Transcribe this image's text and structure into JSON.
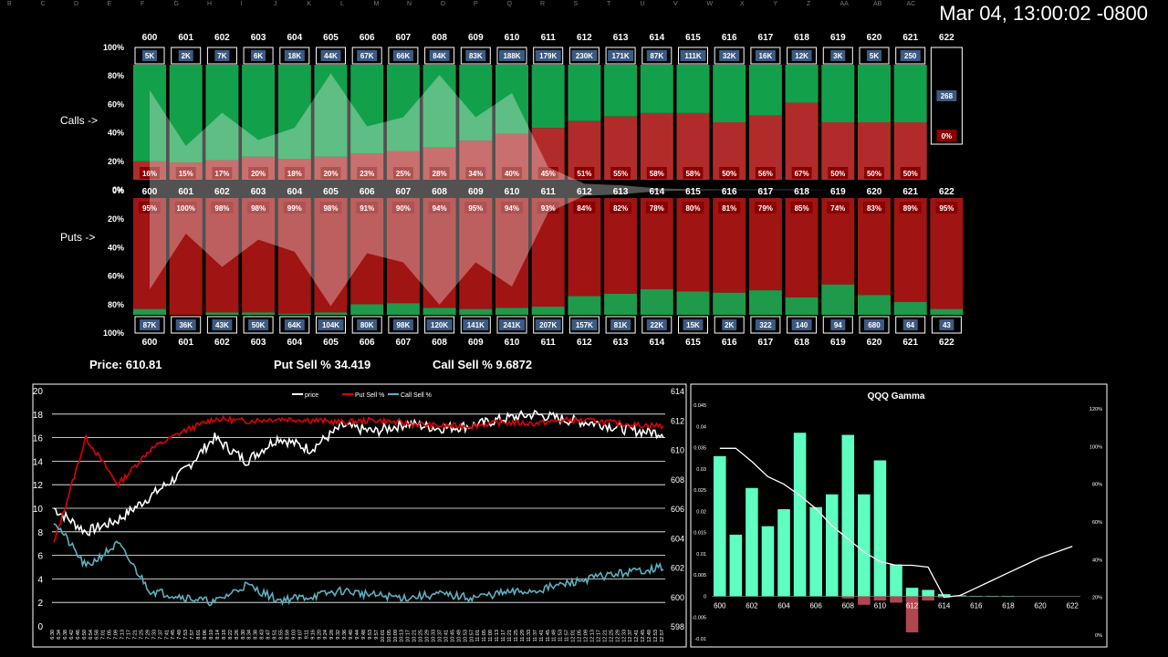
{
  "timestamp": "Mar 04, 13:00:02 -0800",
  "sheet_columns": [
    "B",
    "C",
    "D",
    "E",
    "F",
    "G",
    "H",
    "I",
    "J",
    "K",
    "L",
    "M",
    "N",
    "O",
    "P",
    "Q",
    "R",
    "S",
    "T",
    "U",
    "V",
    "W",
    "X",
    "Y",
    "Z",
    "AA",
    "AB",
    "AC"
  ],
  "labels": {
    "calls": "Calls ->",
    "puts": "Puts ->"
  },
  "stats": {
    "price": "Price: 610.81",
    "put_sell": "Put Sell % 34.419",
    "call_sell": "Call Sell % 9.6872"
  },
  "axis_pct_top": [
    "100%",
    "80%",
    "60%",
    "40%",
    "20%",
    "0%"
  ],
  "axis_pct_bottom": [
    "0%",
    "20%",
    "40%",
    "60%",
    "80%",
    "100%"
  ],
  "strikes": [
    "600",
    "601",
    "602",
    "603",
    "604",
    "605",
    "606",
    "607",
    "608",
    "609",
    "610",
    "611",
    "612",
    "613",
    "614",
    "615",
    "616",
    "617",
    "618",
    "619",
    "620",
    "621",
    "622"
  ],
  "call_volumes": [
    "5K",
    "2K",
    "7K",
    "6K",
    "18K",
    "44K",
    "67K",
    "66K",
    "84K",
    "83K",
    "188K",
    "179K",
    "230K",
    "171K",
    "87K",
    "111K",
    "32K",
    "16K",
    "12K",
    "3K",
    "5K",
    "250",
    "268"
  ],
  "call_sell_pct": [
    "16%",
    "15%",
    "17%",
    "20%",
    "18%",
    "20%",
    "23%",
    "25%",
    "28%",
    "34%",
    "40%",
    "45%",
    "51%",
    "55%",
    "58%",
    "58%",
    "50%",
    "56%",
    "67%",
    "50%",
    "50%",
    "50%",
    "0%"
  ],
  "call_sell_values": [
    16,
    15,
    17,
    20,
    18,
    20,
    23,
    25,
    28,
    34,
    40,
    45,
    51,
    55,
    58,
    58,
    50,
    56,
    67,
    50,
    50,
    50,
    0
  ],
  "put_volumes": [
    "87K",
    "36K",
    "43K",
    "50K",
    "64K",
    "104K",
    "80K",
    "98K",
    "120K",
    "141K",
    "241K",
    "207K",
    "157K",
    "81K",
    "22K",
    "15K",
    "2K",
    "322",
    "140",
    "94",
    "680",
    "64",
    "43"
  ],
  "put_sell_pct": [
    "95%",
    "100%",
    "98%",
    "98%",
    "99%",
    "98%",
    "91%",
    "90%",
    "94%",
    "95%",
    "94%",
    "93%",
    "84%",
    "82%",
    "78%",
    "80%",
    "81%",
    "79%",
    "85%",
    "74%",
    "83%",
    "89%",
    "95%"
  ],
  "put_sell_values": [
    95,
    100,
    98,
    98,
    99,
    98,
    91,
    90,
    94,
    95,
    94,
    93,
    84,
    82,
    78,
    80,
    81,
    79,
    85,
    74,
    83,
    89,
    95
  ],
  "colors": {
    "call_green": "#13a04a",
    "call_red": "#b22b2b",
    "put_red": "#a01414",
    "put_green": "#1e9a4a",
    "vol_box": "#3d5a80",
    "overlay": "#ffffff",
    "flow_price": "#ffffff",
    "flow_put": "#e00000",
    "flow_call": "#5fb0c0",
    "gamma_pos": "#5effc0",
    "gamma_neg": "#b0474f"
  },
  "flow_chart": {
    "legend": [
      "price",
      "Put Sell %",
      "Call Sell %"
    ],
    "left_ticks": [
      "20",
      "18",
      "16",
      "14",
      "12",
      "10",
      "8",
      "6",
      "4",
      "2",
      "0"
    ],
    "right_ticks": [
      "614",
      "612",
      "610",
      "608",
      "606",
      "604",
      "602",
      "600",
      "598"
    ],
    "x_ticks": [
      "6:30",
      "6:34",
      "6:38",
      "6:42",
      "6:46",
      "6:50",
      "6:54",
      "6:58",
      "7:01",
      "7:05",
      "7:09",
      "7:13",
      "7:17",
      "7:21",
      "7:25",
      "7:29",
      "7:33",
      "7:37",
      "7:41",
      "7:45",
      "7:49",
      "7:53",
      "7:57",
      "8:01",
      "8:06",
      "8:10",
      "8:14",
      "8:18",
      "8:22",
      "8:26",
      "8:30",
      "8:34",
      "8:38",
      "8:43",
      "8:47",
      "8:51",
      "8:55",
      "8:59",
      "9:03",
      "9:07",
      "9:11",
      "9:16",
      "9:20",
      "9:24",
      "9:28",
      "9:32",
      "9:36",
      "9:40",
      "9:44",
      "9:48",
      "9:53",
      "9:57",
      "10:01",
      "10:05",
      "10:09",
      "10:13",
      "10:17",
      "10:21",
      "10:25",
      "10:29",
      "10:33",
      "10:37",
      "10:41",
      "10:45",
      "10:49",
      "10:53",
      "10:57",
      "11:01",
      "11:05",
      "11:09",
      "11:13",
      "11:17",
      "11:21",
      "11:25",
      "11:29",
      "11:33",
      "11:37",
      "11:41",
      "11:45",
      "11:49",
      "11:53",
      "11:57",
      "12:01",
      "12:05",
      "12:09",
      "12:13",
      "12:17",
      "12:21",
      "12:25",
      "12:29",
      "12:33",
      "12:37",
      "12:41",
      "12:45",
      "12:49",
      "12:53",
      "12:57"
    ]
  },
  "chart_data": {
    "type": "bar",
    "title": "QQQ Gamma",
    "categories": [
      "600",
      "601",
      "602",
      "603",
      "604",
      "605",
      "606",
      "607",
      "608",
      "609",
      "610",
      "611",
      "612",
      "613",
      "614",
      "615",
      "616",
      "617",
      "618",
      "619",
      "620",
      "621",
      "622"
    ],
    "x_tick_labels": [
      "600",
      "602",
      "604",
      "606",
      "608",
      "610",
      "612",
      "614",
      "616",
      "618",
      "620",
      "622"
    ],
    "series": [
      {
        "values": [
          0.033,
          0.0145,
          0.0255,
          0.0165,
          0.0205,
          0.0385,
          0.021,
          0.024,
          0.038,
          0.024,
          0.032,
          0.0075,
          0.002,
          0.0015,
          0.0005,
          0.0002,
          0.0001,
          0.0001,
          0.0001,
          0,
          0,
          0,
          0
        ]
      }
    ],
    "neg_values": [
      0,
      0,
      0,
      0,
      0,
      0,
      0,
      0,
      -0.0005,
      -0.002,
      -0.001,
      -0.0015,
      -0.0085,
      -0.001,
      -0.0003,
      0,
      0,
      0,
      0,
      0,
      0,
      0,
      0
    ],
    "cumulative_pct": [
      100,
      100,
      93,
      85,
      81,
      75,
      68,
      59,
      52,
      45,
      40,
      38,
      38,
      37,
      21,
      22,
      26,
      30,
      34,
      38,
      42,
      45,
      48
    ],
    "ylim": [
      -0.01,
      0.045
    ],
    "y_ticks": [
      "0.045",
      "0.04",
      "0.035",
      "0.03",
      "0.025",
      "0.02",
      "0.015",
      "0.01",
      "0.005",
      "0",
      "-0.005",
      "-0.01"
    ],
    "y2_ticks": [
      "120%",
      "100%",
      "80%",
      "60%",
      "40%",
      "20%",
      "0%"
    ]
  }
}
